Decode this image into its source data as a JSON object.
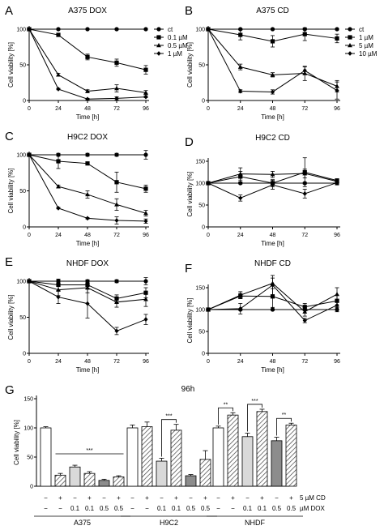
{
  "chart_data": [
    {
      "letter": "A",
      "title": "A375 DOX",
      "type": "line",
      "xlabel": "Time [h]",
      "ylabel": "Cell viability [%]",
      "x": [
        0,
        24,
        48,
        72,
        96
      ],
      "xticks": [
        "0",
        "24",
        "48",
        "72",
        "96"
      ],
      "ylim": [
        0,
        100
      ],
      "yticks": [
        "0",
        "50",
        "100"
      ],
      "legend_position": "right",
      "series": [
        {
          "name": "ct",
          "marker": "circle",
          "values": [
            100,
            100,
            100,
            100,
            100
          ],
          "err": [
            0,
            1,
            1,
            1,
            1
          ]
        },
        {
          "name": "0.1 µM",
          "marker": "square",
          "values": [
            100,
            92,
            61,
            53,
            43
          ],
          "err": [
            0,
            2,
            4,
            5,
            6
          ]
        },
        {
          "name": "0.5 µM",
          "marker": "triangle",
          "values": [
            100,
            36,
            13,
            17,
            11
          ],
          "err": [
            0,
            2,
            2,
            5,
            3
          ]
        },
        {
          "name": "1 µM",
          "marker": "diamond",
          "values": [
            100,
            16,
            2,
            3,
            5
          ],
          "err": [
            0,
            1,
            1,
            2,
            1
          ]
        }
      ]
    },
    {
      "letter": "B",
      "title": "A375 CD",
      "type": "line",
      "xlabel": "Time [h]",
      "ylabel": "Cell viability [%]",
      "x": [
        0,
        24,
        48,
        72,
        96
      ],
      "xticks": [
        "0",
        "24",
        "48",
        "72",
        "96"
      ],
      "ylim": [
        0,
        100
      ],
      "yticks": [
        "0",
        "50",
        "100"
      ],
      "legend_position": "right",
      "series": [
        {
          "name": "ct",
          "marker": "circle",
          "values": [
            100,
            100,
            100,
            100,
            100
          ],
          "err": [
            0,
            1,
            1,
            1,
            1
          ]
        },
        {
          "name": "1 µM",
          "marker": "square",
          "values": [
            100,
            92,
            83,
            93,
            87
          ],
          "err": [
            0,
            7,
            8,
            9,
            6
          ]
        },
        {
          "name": "5 µM",
          "marker": "triangle",
          "values": [
            100,
            47,
            36,
            38,
            20
          ],
          "err": [
            0,
            4,
            3,
            10,
            8
          ]
        },
        {
          "name": "10 µM",
          "marker": "diamond",
          "values": [
            100,
            13,
            12,
            42,
            14
          ],
          "err": [
            0,
            2,
            3,
            5,
            12
          ]
        }
      ]
    },
    {
      "letter": "C",
      "title": "H9C2 DOX",
      "type": "line",
      "xlabel": "Time [h]",
      "ylabel": "Cell viability [%]",
      "x": [
        0,
        24,
        48,
        72,
        96
      ],
      "xticks": [
        "0",
        "24",
        "48",
        "72",
        "96"
      ],
      "ylim": [
        0,
        100
      ],
      "yticks": [
        "0",
        "50",
        "100"
      ],
      "series": [
        {
          "name": "",
          "marker": "circle",
          "values": [
            100,
            100,
            100,
            100,
            100
          ],
          "err": [
            0,
            2,
            2,
            2,
            6
          ]
        },
        {
          "name": "",
          "marker": "square",
          "values": [
            100,
            91,
            88,
            62,
            53
          ],
          "err": [
            0,
            10,
            2,
            14,
            5
          ]
        },
        {
          "name": "",
          "marker": "triangle",
          "values": [
            100,
            56,
            45,
            31,
            19
          ],
          "err": [
            0,
            2,
            5,
            8,
            4
          ]
        },
        {
          "name": "",
          "marker": "diamond",
          "values": [
            100,
            26,
            12,
            9,
            8
          ],
          "err": [
            0,
            1,
            1,
            5,
            3
          ]
        }
      ]
    },
    {
      "letter": "D",
      "title": "H9C2 CD",
      "type": "line",
      "xlabel": "Time [h]",
      "ylabel": "Cell viability [%]",
      "x": [
        0,
        24,
        48,
        72,
        96
      ],
      "xticks": [
        "0",
        "24",
        "48",
        "72",
        "96"
      ],
      "ylim": [
        0,
        150
      ],
      "yticks": [
        "0",
        "50",
        "100",
        "150"
      ],
      "series": [
        {
          "name": "",
          "marker": "circle",
          "values": [
            100,
            100,
            100,
            100,
            100
          ],
          "err": [
            0,
            2,
            2,
            2,
            3
          ]
        },
        {
          "name": "",
          "marker": "square",
          "values": [
            100,
            115,
            100,
            125,
            106
          ],
          "err": [
            0,
            12,
            8,
            33,
            4
          ]
        },
        {
          "name": "",
          "marker": "triangle",
          "values": [
            100,
            121,
            120,
            122,
            104
          ],
          "err": [
            0,
            14,
            7,
            10,
            4
          ]
        },
        {
          "name": "",
          "marker": "diamond",
          "values": [
            100,
            66,
            96,
            76,
            101
          ],
          "err": [
            0,
            7,
            10,
            10,
            5
          ]
        }
      ]
    },
    {
      "letter": "E",
      "title": "NHDF DOX",
      "type": "line",
      "xlabel": "Time [h]",
      "ylabel": "Cell viability [%]",
      "x": [
        0,
        24,
        48,
        72,
        96
      ],
      "xticks": [
        "0",
        "24",
        "48",
        "72",
        "96"
      ],
      "ylim": [
        0,
        100
      ],
      "yticks": [
        "0",
        "50",
        "100"
      ],
      "series": [
        {
          "name": "",
          "marker": "circle",
          "values": [
            100,
            100,
            100,
            100,
            100
          ],
          "err": [
            0,
            2,
            2,
            2,
            5
          ]
        },
        {
          "name": "",
          "marker": "square",
          "values": [
            100,
            95,
            95,
            76,
            84
          ],
          "err": [
            0,
            8,
            6,
            5,
            7
          ]
        },
        {
          "name": "",
          "marker": "triangle",
          "values": [
            100,
            88,
            91,
            71,
            75
          ],
          "err": [
            0,
            8,
            7,
            7,
            10
          ]
        },
        {
          "name": "",
          "marker": "diamond",
          "values": [
            100,
            78,
            69,
            31,
            47
          ],
          "err": [
            0,
            9,
            20,
            5,
            7
          ]
        }
      ]
    },
    {
      "letter": "F",
      "title": "NHDF CD",
      "type": "line",
      "xlabel": "Time [h]",
      "ylabel": "Cell viability [%]",
      "x": [
        0,
        24,
        48,
        72,
        96
      ],
      "xticks": [
        "0",
        "24",
        "48",
        "72",
        "96"
      ],
      "ylim": [
        0,
        150
      ],
      "yticks": [
        "0",
        "50",
        "100",
        "150"
      ],
      "series": [
        {
          "name": "",
          "marker": "circle",
          "values": [
            100,
            100,
            100,
            100,
            100
          ],
          "err": [
            0,
            2,
            2,
            2,
            5
          ]
        },
        {
          "name": "",
          "marker": "square",
          "values": [
            100,
            131,
            130,
            106,
            120
          ],
          "err": [
            0,
            6,
            25,
            8,
            13
          ]
        },
        {
          "name": "",
          "marker": "triangle",
          "values": [
            100,
            133,
            160,
            95,
            135
          ],
          "err": [
            0,
            8,
            12,
            10,
            15
          ]
        },
        {
          "name": "",
          "marker": "diamond",
          "values": [
            100,
            102,
            156,
            75,
            110
          ],
          "err": [
            0,
            12,
            22,
            5,
            10
          ]
        }
      ]
    },
    {
      "letter": "G",
      "title": "96h",
      "type": "bar",
      "ylabel": "Cell viability [%]",
      "ylim": [
        0,
        150
      ],
      "yticks": [
        "0",
        "50",
        "100",
        "150"
      ],
      "row_labels": [
        "5 µM CD",
        "µM DOX"
      ],
      "cd": [
        "−",
        "+",
        "−",
        "+",
        "−",
        "+",
        "−",
        "+",
        "−",
        "+",
        "−",
        "+",
        "−",
        "+",
        "−",
        "+",
        "−",
        "+"
      ],
      "dox": [
        "−",
        "−",
        "0.1",
        "0.1",
        "0.5",
        "0.5",
        "−",
        "−",
        "0.1",
        "0.1",
        "0.5",
        "0.5",
        "−",
        "−",
        "0.1",
        "0.1",
        "0.5",
        "0.5"
      ],
      "groups": [
        {
          "name": "A375",
          "values": [
            100,
            19,
            33,
            22,
            10,
            16
          ],
          "err": [
            2,
            3,
            3,
            3,
            2,
            2
          ]
        },
        {
          "name": "H9C2",
          "values": [
            100,
            102,
            43,
            96,
            18,
            46
          ],
          "err": [
            5,
            8,
            5,
            10,
            2,
            15
          ]
        },
        {
          "name": "NHDF",
          "values": [
            100,
            122,
            85,
            128,
            78,
            105
          ],
          "err": [
            3,
            4,
            6,
            4,
            6,
            3
          ]
        }
      ],
      "significance": [
        {
          "label": "***",
          "from": 1,
          "to": 5
        },
        {
          "label": "***",
          "from": 8,
          "to": 9
        },
        {
          "label": "**",
          "from": 12,
          "to": 13
        },
        {
          "label": "***",
          "from": 14,
          "to": 15
        },
        {
          "label": "**",
          "from": 16,
          "to": 17
        }
      ],
      "bar_fills": [
        "#ffffff",
        "#bfbfbf",
        "#d9d9d9",
        "#bfbfbf",
        "#8c8c8c",
        "#bfbfbf"
      ],
      "bar_hatched": [
        false,
        true,
        false,
        true,
        false,
        true
      ]
    }
  ]
}
